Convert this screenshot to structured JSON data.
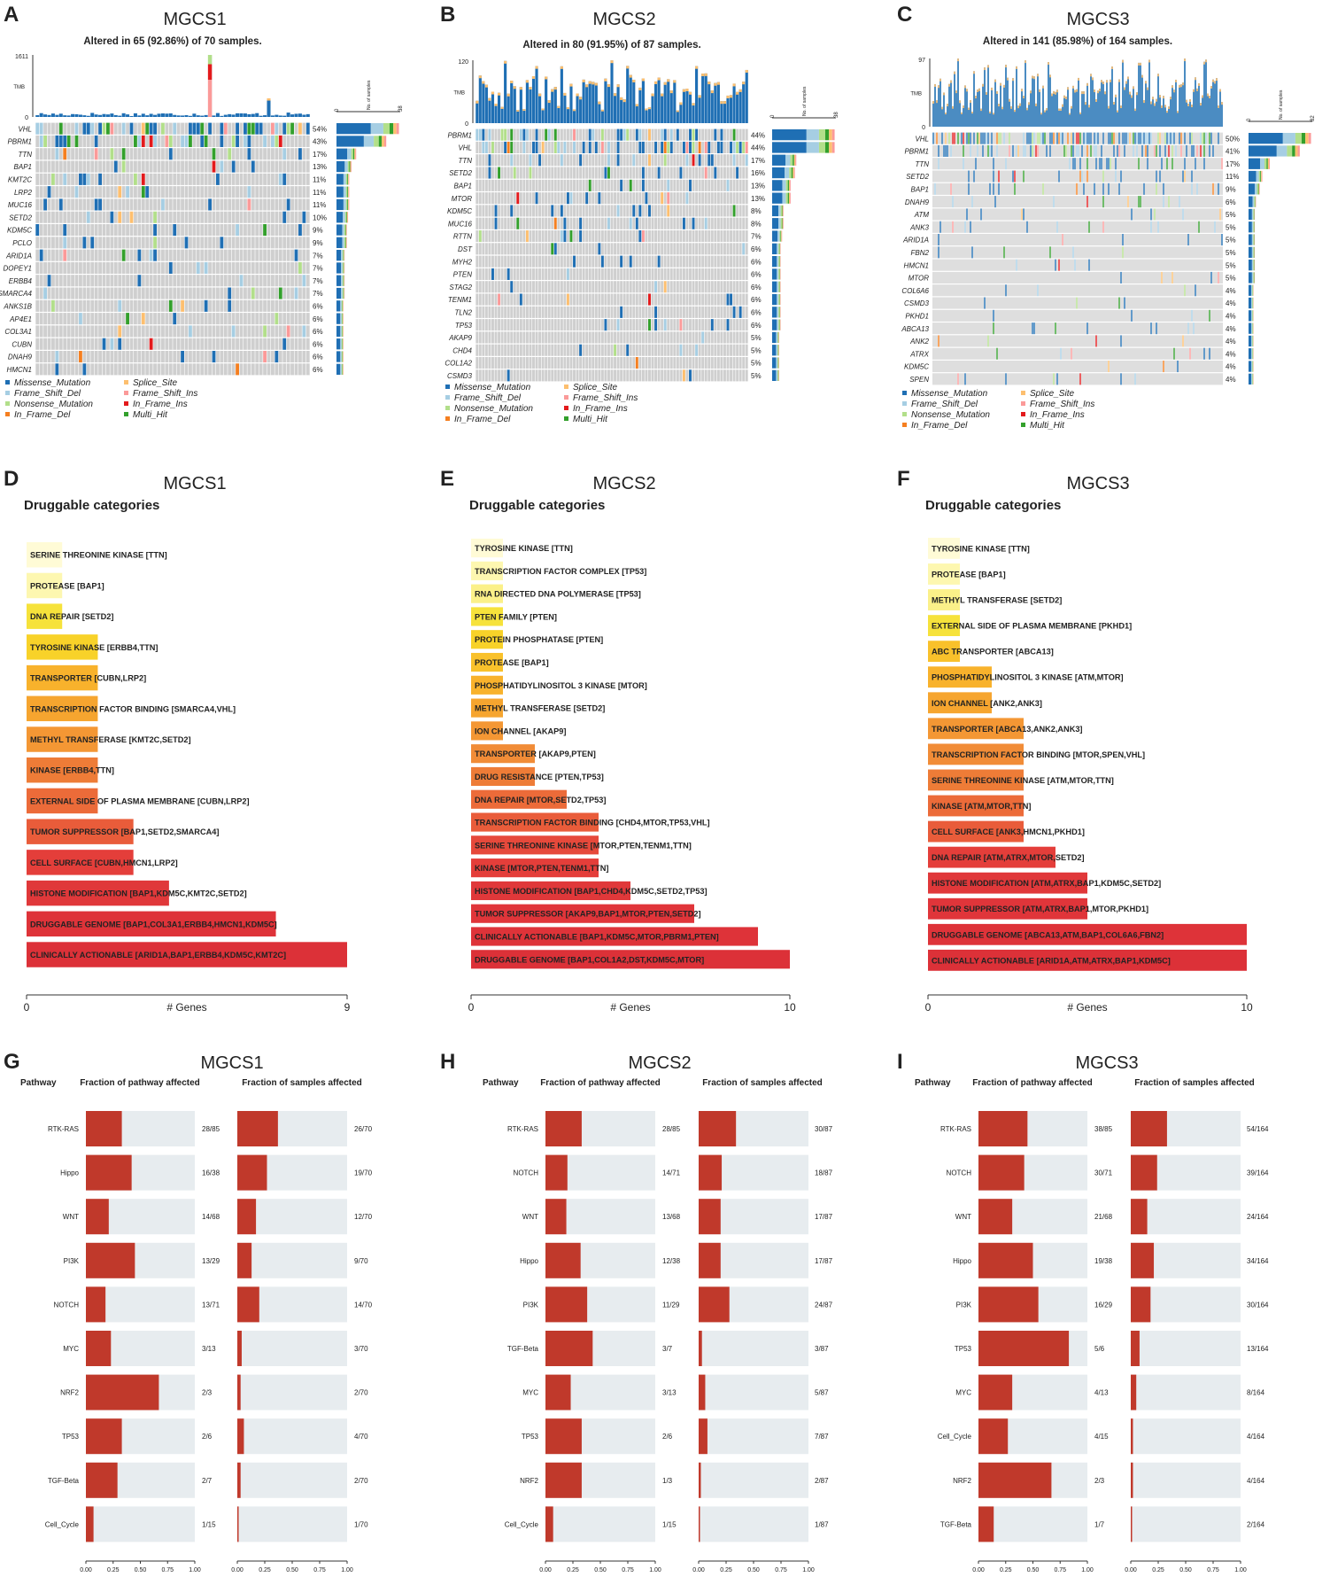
{
  "colors": {
    "missense": "#1f6fb4",
    "frame_shift_del": "#a6cee3",
    "nonsense": "#b2df8a",
    "in_frame_del": "#f57f20",
    "splice_site": "#fdbf6f",
    "frame_shift_ins": "#fb9a99",
    "in_frame_ins": "#e31a1c",
    "multi_hit": "#33a02c",
    "wildtype": "#cfcfcf",
    "pathway_fill": "#c0392b",
    "pathway_bg": "#e7ecef"
  },
  "legend": [
    {
      "key": "missense",
      "label": "Missense_Mutation"
    },
    {
      "key": "frame_shift_del",
      "label": "Frame_Shift_Del"
    },
    {
      "key": "nonsense",
      "label": "Nonsense_Mutation"
    },
    {
      "key": "in_frame_del",
      "label": "In_Frame_Del"
    },
    {
      "key": "splice_site",
      "label": "Splice_Site"
    },
    {
      "key": "frame_shift_ins",
      "label": "Frame_Shift_Ins"
    },
    {
      "key": "in_frame_ins",
      "label": "In_Frame_Ins"
    },
    {
      "key": "multi_hit",
      "label": "Multi_Hit"
    }
  ],
  "chart_data": [
    {
      "panel": "A",
      "type": "heatmap",
      "title": "MGCS1",
      "subtitle": "Altered in 65 (92.86%) of 70 samples.",
      "tmb_label": "TMB",
      "tmb_max": "1611",
      "tmb_min": "0",
      "samples_label": "No. of samples",
      "samples_min": "0",
      "samples_max": "38",
      "samples": 70,
      "tmb_style": "sparse",
      "genes": [
        {
          "gene": "VHL",
          "pct": "54%"
        },
        {
          "gene": "PBRM1",
          "pct": "43%"
        },
        {
          "gene": "TTN",
          "pct": "17%"
        },
        {
          "gene": "BAP1",
          "pct": "13%"
        },
        {
          "gene": "KMT2C",
          "pct": "11%"
        },
        {
          "gene": "LRP2",
          "pct": "11%"
        },
        {
          "gene": "MUC16",
          "pct": "11%"
        },
        {
          "gene": "SETD2",
          "pct": "10%"
        },
        {
          "gene": "KDM5C",
          "pct": "9%"
        },
        {
          "gene": "PCLO",
          "pct": "9%"
        },
        {
          "gene": "ARID1A",
          "pct": "7%"
        },
        {
          "gene": "DOPEY1",
          "pct": "7%"
        },
        {
          "gene": "ERBB4",
          "pct": "7%"
        },
        {
          "gene": "SMARCA4",
          "pct": "7%"
        },
        {
          "gene": "ANKS1B",
          "pct": "6%"
        },
        {
          "gene": "AP4E1",
          "pct": "6%"
        },
        {
          "gene": "COL3A1",
          "pct": "6%"
        },
        {
          "gene": "CUBN",
          "pct": "6%"
        },
        {
          "gene": "DNAH9",
          "pct": "6%"
        },
        {
          "gene": "HMCN1",
          "pct": "6%"
        }
      ]
    },
    {
      "panel": "B",
      "type": "heatmap",
      "title": "MGCS2",
      "subtitle": "Altered in 80 (91.95%) of 87 samples.",
      "tmb_label": "TMB",
      "tmb_max": "120",
      "tmb_min": "0",
      "samples_label": "No. of samples",
      "samples_min": "0",
      "samples_max": "38",
      "samples": 87,
      "tmb_style": "dense",
      "genes": [
        {
          "gene": "PBRM1",
          "pct": "44%"
        },
        {
          "gene": "VHL",
          "pct": "44%"
        },
        {
          "gene": "TTN",
          "pct": "17%"
        },
        {
          "gene": "SETD2",
          "pct": "16%"
        },
        {
          "gene": "BAP1",
          "pct": "13%"
        },
        {
          "gene": "MTOR",
          "pct": "13%"
        },
        {
          "gene": "KDM5C",
          "pct": "8%"
        },
        {
          "gene": "MUC16",
          "pct": "8%"
        },
        {
          "gene": "RTTN",
          "pct": "7%"
        },
        {
          "gene": "DST",
          "pct": "6%"
        },
        {
          "gene": "MYH2",
          "pct": "6%"
        },
        {
          "gene": "PTEN",
          "pct": "6%"
        },
        {
          "gene": "STAG2",
          "pct": "6%"
        },
        {
          "gene": "TENM1",
          "pct": "6%"
        },
        {
          "gene": "TLN2",
          "pct": "6%"
        },
        {
          "gene": "TP53",
          "pct": "6%"
        },
        {
          "gene": "AKAP9",
          "pct": "5%"
        },
        {
          "gene": "CHD4",
          "pct": "5%"
        },
        {
          "gene": "COL1A2",
          "pct": "5%"
        },
        {
          "gene": "CSMD3",
          "pct": "5%"
        }
      ]
    },
    {
      "panel": "C",
      "type": "heatmap",
      "title": "MGCS3",
      "subtitle": "Altered in 141 (85.98%) of 164 samples.",
      "tmb_label": "TMB",
      "tmb_max": "97",
      "tmb_min": "0",
      "samples_label": "No. of samples",
      "samples_min": "0",
      "samples_max": "82",
      "samples": 164,
      "tmb_style": "dense",
      "genes": [
        {
          "gene": "VHL",
          "pct": "50%"
        },
        {
          "gene": "PBRM1",
          "pct": "41%"
        },
        {
          "gene": "TTN",
          "pct": "17%"
        },
        {
          "gene": "SETD2",
          "pct": "11%"
        },
        {
          "gene": "BAP1",
          "pct": "9%"
        },
        {
          "gene": "DNAH9",
          "pct": "6%"
        },
        {
          "gene": "ATM",
          "pct": "5%"
        },
        {
          "gene": "ANK3",
          "pct": "5%"
        },
        {
          "gene": "ARID1A",
          "pct": "5%"
        },
        {
          "gene": "FBN2",
          "pct": "5%"
        },
        {
          "gene": "HMCN1",
          "pct": "5%"
        },
        {
          "gene": "MTOR",
          "pct": "5%"
        },
        {
          "gene": "COL6A6",
          "pct": "4%"
        },
        {
          "gene": "CSMD3",
          "pct": "4%"
        },
        {
          "gene": "PKHD1",
          "pct": "4%"
        },
        {
          "gene": "ABCA13",
          "pct": "4%"
        },
        {
          "gene": "ANK2",
          "pct": "4%"
        },
        {
          "gene": "ATRX",
          "pct": "4%"
        },
        {
          "gene": "KDM5C",
          "pct": "4%"
        },
        {
          "gene": "SPEN",
          "pct": "4%"
        }
      ]
    },
    {
      "panel": "D",
      "type": "bar",
      "title": "MGCS1",
      "subtitle": "Druggable categories",
      "xlabel": "# Genes",
      "xlim": [
        0,
        9
      ],
      "ticks": [
        "0",
        "9"
      ],
      "bars": [
        {
          "label": "SERINE THREONINE KINASE [TTN]",
          "value": 1
        },
        {
          "label": "PROTEASE [BAP1]",
          "value": 1
        },
        {
          "label": "DNA REPAIR [SETD2]",
          "value": 1
        },
        {
          "label": "TYROSINE KINASE [ERBB4,TTN]",
          "value": 2
        },
        {
          "label": "TRANSPORTER [CUBN,LRP2]",
          "value": 2
        },
        {
          "label": "TRANSCRIPTION FACTOR BINDING [SMARCA4,VHL]",
          "value": 2
        },
        {
          "label": "METHYL TRANSFERASE [KMT2C,SETD2]",
          "value": 2
        },
        {
          "label": "KINASE [ERBB4,TTN]",
          "value": 2
        },
        {
          "label": "EXTERNAL SIDE OF PLASMA MEMBRANE [CUBN,LRP2]",
          "value": 2
        },
        {
          "label": "TUMOR SUPPRESSOR [BAP1,SETD2,SMARCA4]",
          "value": 3
        },
        {
          "label": "CELL SURFACE [CUBN,HMCN1,LRP2]",
          "value": 3
        },
        {
          "label": "HISTONE MODIFICATION [BAP1,KDM5C,KMT2C,SETD2]",
          "value": 4
        },
        {
          "label": "DRUGGABLE GENOME [BAP1,COL3A1,ERBB4,HMCN1,KDM5C]",
          "value": 7
        },
        {
          "label": "CLINICALLY ACTIONABLE [ARID1A,BAP1,ERBB4,KDM5C,KMT2C]",
          "value": 9
        }
      ]
    },
    {
      "panel": "E",
      "type": "bar",
      "title": "MGCS2",
      "subtitle": "Druggable categories",
      "xlabel": "# Genes",
      "xlim": [
        0,
        10
      ],
      "ticks": [
        "0",
        "10"
      ],
      "bars": [
        {
          "label": "TYROSINE KINASE [TTN]",
          "value": 1
        },
        {
          "label": "TRANSCRIPTION FACTOR COMPLEX [TP53]",
          "value": 1
        },
        {
          "label": "RNA DIRECTED DNA POLYMERASE [TP53]",
          "value": 1
        },
        {
          "label": "PTEN FAMILY [PTEN]",
          "value": 1
        },
        {
          "label": "PROTEIN PHOSPHATASE [PTEN]",
          "value": 1
        },
        {
          "label": "PROTEASE [BAP1]",
          "value": 1
        },
        {
          "label": "PHOSPHATIDYLINOSITOL 3 KINASE [MTOR]",
          "value": 1
        },
        {
          "label": "METHYL TRANSFERASE [SETD2]",
          "value": 1
        },
        {
          "label": "ION CHANNEL [AKAP9]",
          "value": 1
        },
        {
          "label": "TRANSPORTER [AKAP9,PTEN]",
          "value": 2
        },
        {
          "label": "DRUG RESISTANCE [PTEN,TP53]",
          "value": 2
        },
        {
          "label": "DNA REPAIR [MTOR,SETD2,TP53]",
          "value": 3
        },
        {
          "label": "TRANSCRIPTION FACTOR BINDING [CHD4,MTOR,TP53,VHL]",
          "value": 4
        },
        {
          "label": "SERINE THREONINE KINASE [MTOR,PTEN,TENM1,TTN]",
          "value": 4
        },
        {
          "label": "KINASE [MTOR,PTEN,TENM1,TTN]",
          "value": 4
        },
        {
          "label": "HISTONE MODIFICATION [BAP1,CHD4,KDM5C,SETD2,TP53]",
          "value": 5
        },
        {
          "label": "TUMOR SUPPRESSOR [AKAP9,BAP1,MTOR,PTEN,SETD2]",
          "value": 7
        },
        {
          "label": "CLINICALLY ACTIONABLE [BAP1,KDM5C,MTOR,PBRM1,PTEN]",
          "value": 9
        },
        {
          "label": "DRUGGABLE GENOME [BAP1,COL1A2,DST,KDM5C,MTOR]",
          "value": 10
        }
      ]
    },
    {
      "panel": "F",
      "type": "bar",
      "title": "MGCS3",
      "subtitle": "Druggable categories",
      "xlabel": "# Genes",
      "xlim": [
        0,
        10
      ],
      "ticks": [
        "0",
        "10"
      ],
      "bars": [
        {
          "label": "TYROSINE KINASE [TTN]",
          "value": 1
        },
        {
          "label": "PROTEASE [BAP1]",
          "value": 1
        },
        {
          "label": "METHYL TRANSFERASE [SETD2]",
          "value": 1
        },
        {
          "label": "EXTERNAL SIDE OF PLASMA MEMBRANE [PKHD1]",
          "value": 1
        },
        {
          "label": "ABC TRANSPORTER [ABCA13]",
          "value": 1
        },
        {
          "label": "PHOSPHATIDYLINOSITOL 3 KINASE [ATM,MTOR]",
          "value": 2
        },
        {
          "label": "ION CHANNEL [ANK2,ANK3]",
          "value": 2
        },
        {
          "label": "TRANSPORTER [ABCA13,ANK2,ANK3]",
          "value": 3
        },
        {
          "label": "TRANSCRIPTION FACTOR BINDING [MTOR,SPEN,VHL]",
          "value": 3
        },
        {
          "label": "SERINE THREONINE KINASE [ATM,MTOR,TTN]",
          "value": 3
        },
        {
          "label": "KINASE [ATM,MTOR,TTN]",
          "value": 3
        },
        {
          "label": "CELL SURFACE [ANK3,HMCN1,PKHD1]",
          "value": 3
        },
        {
          "label": "DNA REPAIR [ATM,ATRX,MTOR,SETD2]",
          "value": 4
        },
        {
          "label": "HISTONE MODIFICATION [ATM,ATRX,BAP1,KDM5C,SETD2]",
          "value": 5
        },
        {
          "label": "TUMOR SUPPRESSOR [ATM,ATRX,BAP1,MTOR,PKHD1]",
          "value": 5
        },
        {
          "label": "DRUGGABLE GENOME [ABCA13,ATM,BAP1,COL6A6,FBN2]",
          "value": 10
        },
        {
          "label": "CLINICALLY ACTIONABLE [ARID1A,ATM,ATRX,BAP1,KDM5C]",
          "value": 10
        }
      ]
    },
    {
      "panel": "G",
      "type": "bar",
      "title": "MGCS1",
      "col_pathway": "Pathway",
      "col_fraction": "Fraction of pathway affected",
      "col_samples": "Fraction of samples affected",
      "ticks": [
        "0.00",
        "0.25",
        "0.50",
        "0.75",
        "1.00"
      ],
      "rows": [
        {
          "pathway": "RTK-RAS",
          "frac_label": "28/85",
          "frac": 0.33,
          "samp_label": "26/70",
          "samp": 0.37
        },
        {
          "pathway": "Hippo",
          "frac_label": "16/38",
          "frac": 0.42,
          "samp_label": "19/70",
          "samp": 0.27
        },
        {
          "pathway": "WNT",
          "frac_label": "14/68",
          "frac": 0.21,
          "samp_label": "12/70",
          "samp": 0.17
        },
        {
          "pathway": "PI3K",
          "frac_label": "13/29",
          "frac": 0.45,
          "samp_label": "9/70",
          "samp": 0.13
        },
        {
          "pathway": "NOTCH",
          "frac_label": "13/71",
          "frac": 0.18,
          "samp_label": "14/70",
          "samp": 0.2
        },
        {
          "pathway": "MYC",
          "frac_label": "3/13",
          "frac": 0.23,
          "samp_label": "3/70",
          "samp": 0.04
        },
        {
          "pathway": "NRF2",
          "frac_label": "2/3",
          "frac": 0.67,
          "samp_label": "2/70",
          "samp": 0.03
        },
        {
          "pathway": "TP53",
          "frac_label": "2/6",
          "frac": 0.33,
          "samp_label": "4/70",
          "samp": 0.06
        },
        {
          "pathway": "TGF-Beta",
          "frac_label": "2/7",
          "frac": 0.29,
          "samp_label": "2/70",
          "samp": 0.03
        },
        {
          "pathway": "Cell_Cycle",
          "frac_label": "1/15",
          "frac": 0.07,
          "samp_label": "1/70",
          "samp": 0.01
        }
      ]
    },
    {
      "panel": "H",
      "type": "bar",
      "title": "MGCS2",
      "col_pathway": "Pathway",
      "col_fraction": "Fraction of pathway affected",
      "col_samples": "Fraction of samples affected",
      "ticks": [
        "0.00",
        "0.25",
        "0.50",
        "0.75",
        "1.00"
      ],
      "rows": [
        {
          "pathway": "RTK-RAS",
          "frac_label": "28/85",
          "frac": 0.33,
          "samp_label": "30/87",
          "samp": 0.34
        },
        {
          "pathway": "NOTCH",
          "frac_label": "14/71",
          "frac": 0.2,
          "samp_label": "18/87",
          "samp": 0.21
        },
        {
          "pathway": "WNT",
          "frac_label": "13/68",
          "frac": 0.19,
          "samp_label": "17/87",
          "samp": 0.2
        },
        {
          "pathway": "Hippo",
          "frac_label": "12/38",
          "frac": 0.32,
          "samp_label": "17/87",
          "samp": 0.2
        },
        {
          "pathway": "PI3K",
          "frac_label": "11/29",
          "frac": 0.38,
          "samp_label": "24/87",
          "samp": 0.28
        },
        {
          "pathway": "TGF-Beta",
          "frac_label": "3/7",
          "frac": 0.43,
          "samp_label": "3/87",
          "samp": 0.03
        },
        {
          "pathway": "MYC",
          "frac_label": "3/13",
          "frac": 0.23,
          "samp_label": "5/87",
          "samp": 0.06
        },
        {
          "pathway": "TP53",
          "frac_label": "2/6",
          "frac": 0.33,
          "samp_label": "7/87",
          "samp": 0.08
        },
        {
          "pathway": "NRF2",
          "frac_label": "1/3",
          "frac": 0.33,
          "samp_label": "2/87",
          "samp": 0.02
        },
        {
          "pathway": "Cell_Cycle",
          "frac_label": "1/15",
          "frac": 0.07,
          "samp_label": "1/87",
          "samp": 0.01
        }
      ]
    },
    {
      "panel": "I",
      "type": "bar",
      "title": "MGCS3",
      "col_pathway": "Pathway",
      "col_fraction": "Fraction of pathway affected",
      "col_samples": "Fraction of samples affected",
      "ticks": [
        "0.00",
        "0.25",
        "0.50",
        "0.75",
        "1.00"
      ],
      "rows": [
        {
          "pathway": "RTK-RAS",
          "frac_label": "38/85",
          "frac": 0.45,
          "samp_label": "54/164",
          "samp": 0.33
        },
        {
          "pathway": "NOTCH",
          "frac_label": "30/71",
          "frac": 0.42,
          "samp_label": "39/164",
          "samp": 0.24
        },
        {
          "pathway": "WNT",
          "frac_label": "21/68",
          "frac": 0.31,
          "samp_label": "24/164",
          "samp": 0.15
        },
        {
          "pathway": "Hippo",
          "frac_label": "19/38",
          "frac": 0.5,
          "samp_label": "34/164",
          "samp": 0.21
        },
        {
          "pathway": "PI3K",
          "frac_label": "16/29",
          "frac": 0.55,
          "samp_label": "30/164",
          "samp": 0.18
        },
        {
          "pathway": "TP53",
          "frac_label": "5/6",
          "frac": 0.83,
          "samp_label": "13/164",
          "samp": 0.08
        },
        {
          "pathway": "MYC",
          "frac_label": "4/13",
          "frac": 0.31,
          "samp_label": "8/164",
          "samp": 0.05
        },
        {
          "pathway": "Cell_Cycle",
          "frac_label": "4/15",
          "frac": 0.27,
          "samp_label": "4/164",
          "samp": 0.02
        },
        {
          "pathway": "NRF2",
          "frac_label": "2/3",
          "frac": 0.67,
          "samp_label": "4/164",
          "samp": 0.02
        },
        {
          "pathway": "TGF-Beta",
          "frac_label": "1/7",
          "frac": 0.14,
          "samp_label": "2/164",
          "samp": 0.01
        }
      ]
    }
  ]
}
